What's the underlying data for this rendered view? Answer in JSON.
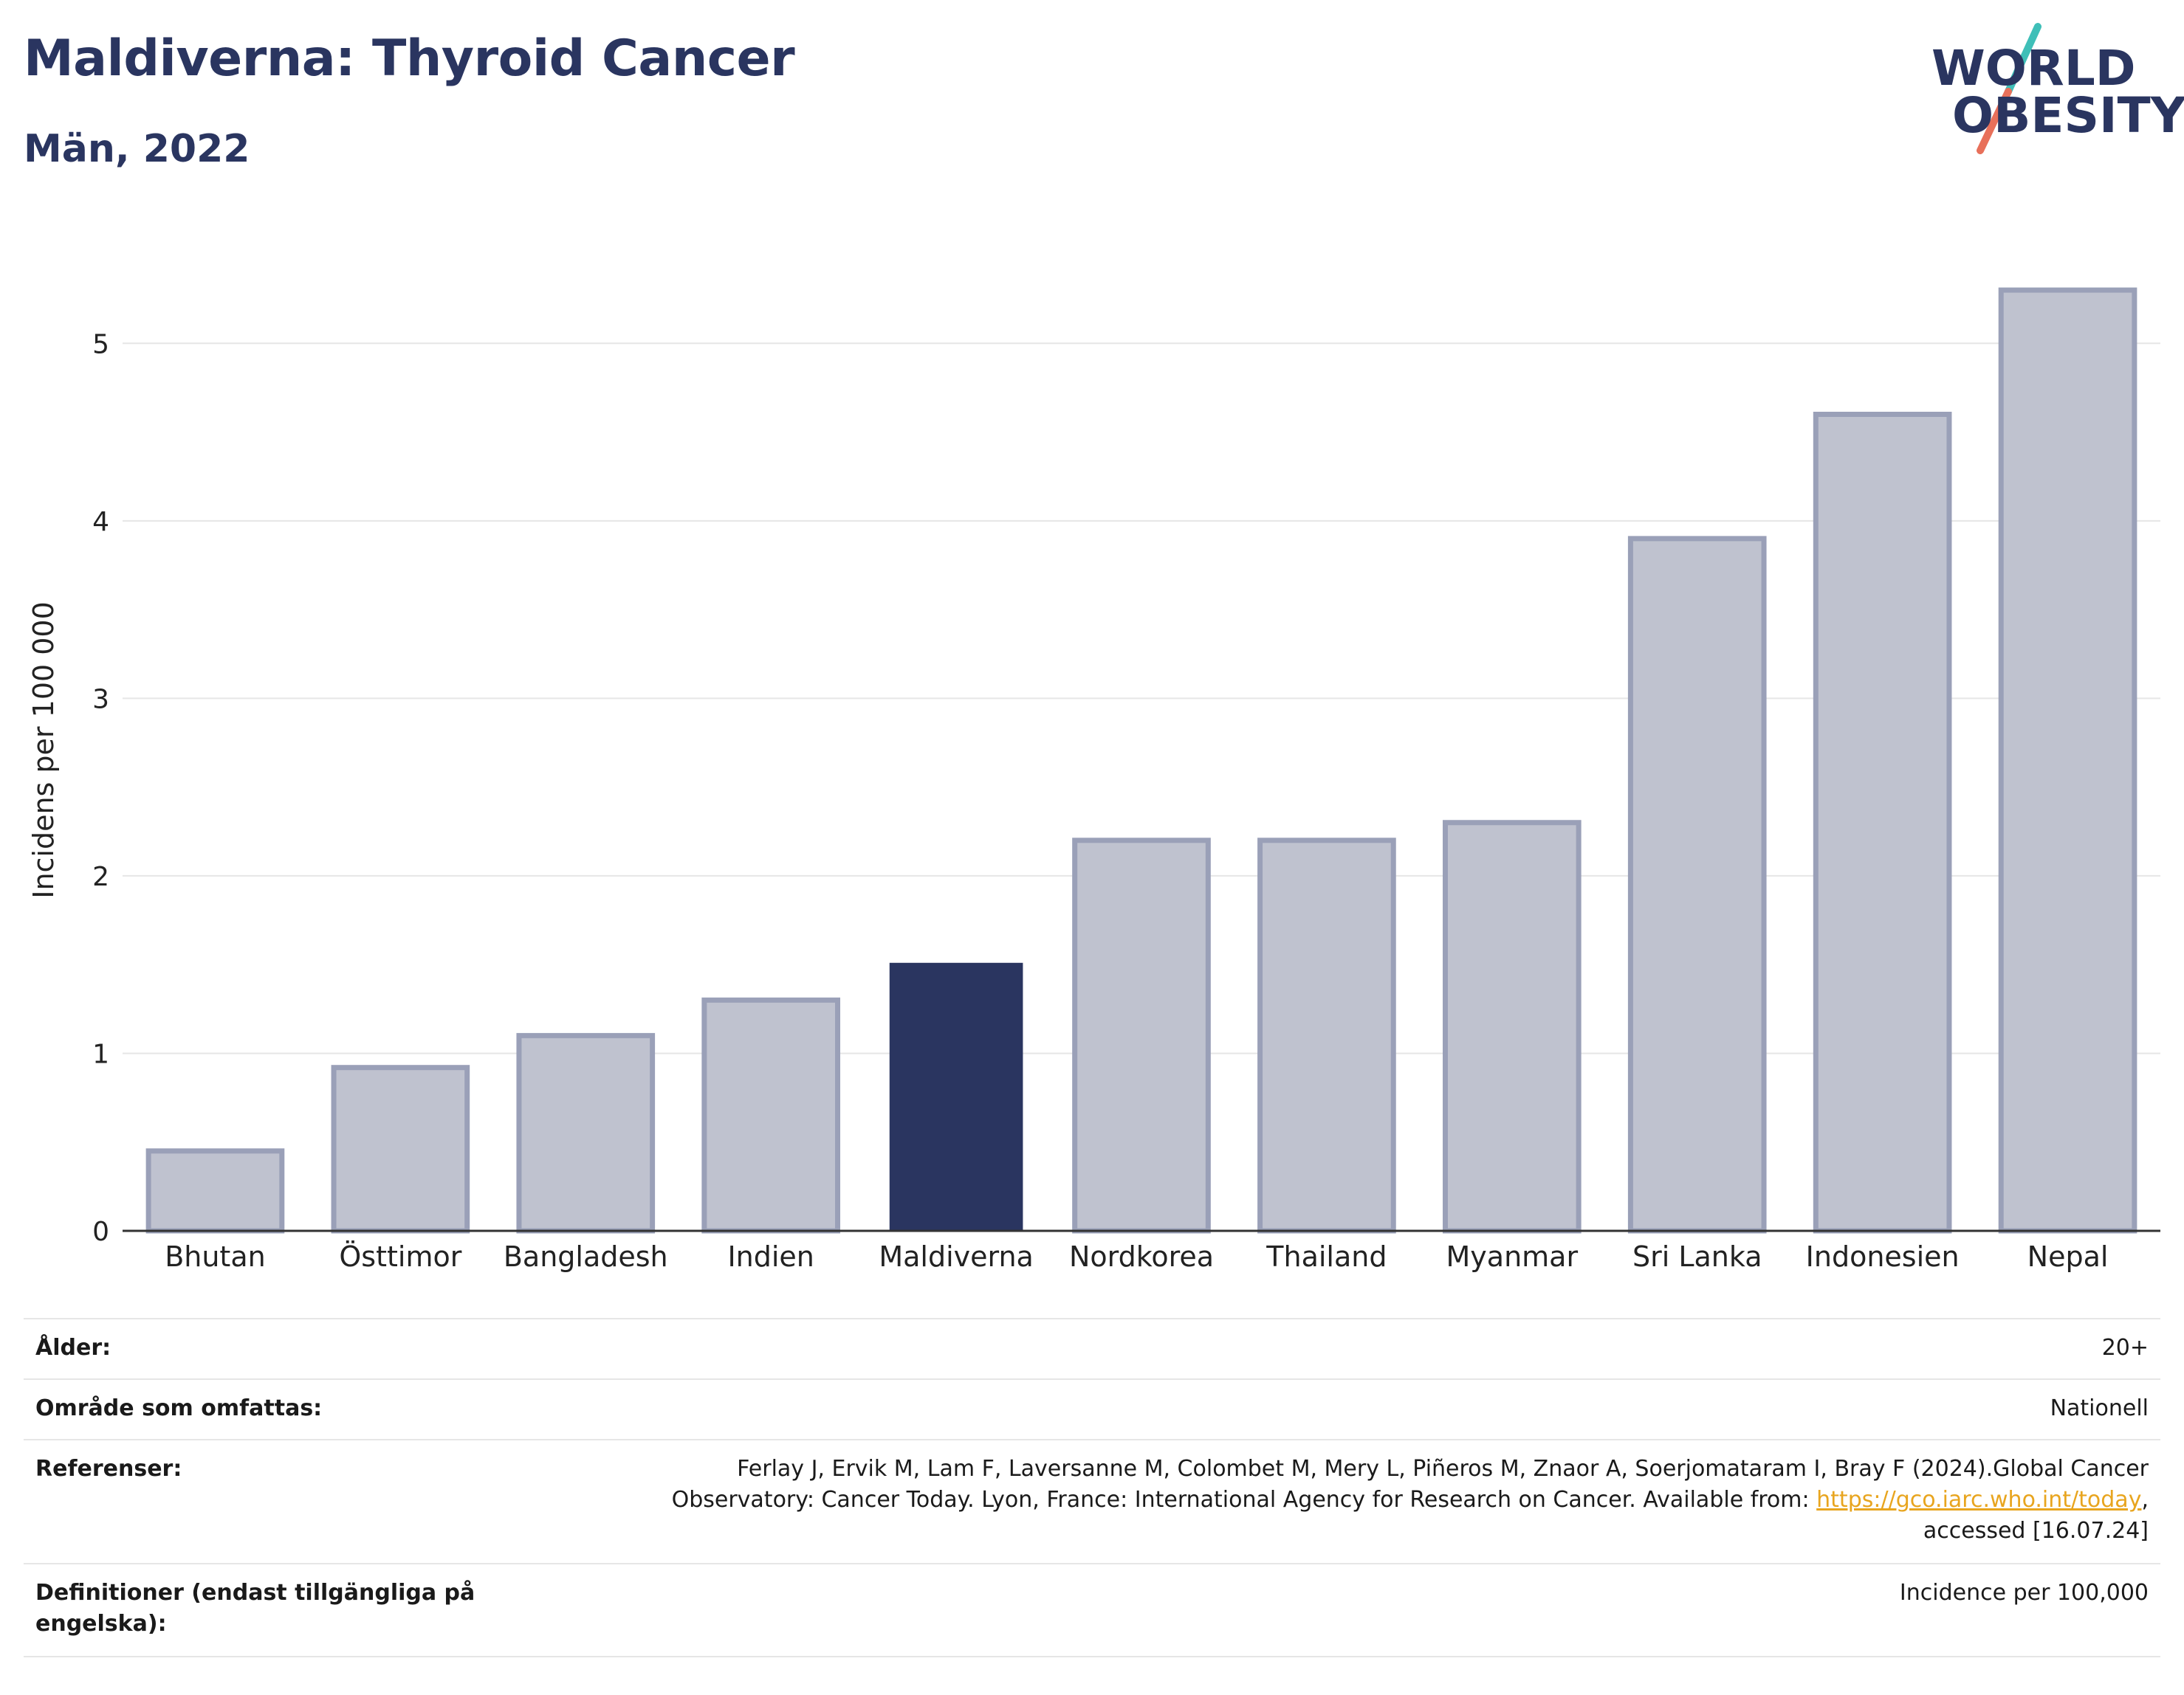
{
  "header": {
    "title": "Maldiverna: Thyroid Cancer",
    "subtitle": "Män, 2022"
  },
  "logo": {
    "line1": "WORLD",
    "line2": "OBESITY",
    "slash_colors": [
      "#3fbfb8",
      "#e8705a"
    ]
  },
  "colors": {
    "highlight": "#2a3560",
    "bar_fill": "#bfc2cf",
    "bar_stroke": "#9aa0b8",
    "axis": "#333333",
    "grid": "#e6e6e6"
  },
  "chart_data": {
    "type": "bar",
    "categories": [
      "Bhutan",
      "Östtimor",
      "Bangladesh",
      "Indien",
      "Maldiverna",
      "Nordkorea",
      "Thailand",
      "Myanmar",
      "Sri Lanka",
      "Indonesien",
      "Nepal"
    ],
    "values": [
      0.45,
      0.92,
      1.1,
      1.3,
      1.51,
      2.2,
      2.2,
      2.3,
      3.9,
      4.6,
      5.3
    ],
    "highlight": "Maldiverna",
    "ylabel": "Incidens per 100 000",
    "xlabel": "",
    "ylim": [
      0,
      5.5
    ],
    "yticks": [
      0,
      1,
      2,
      3,
      4,
      5
    ],
    "grid": true
  },
  "meta": {
    "age": {
      "label": "Ålder:",
      "value": "20+"
    },
    "area": {
      "label": "Område som omfattas:",
      "value": "Nationell"
    },
    "refs": {
      "label": "Referenser:",
      "line1": "Ferlay J, Ervik M, Lam F, Laversanne M, Colombet M, Mery L, Piñeros M, Znaor A, Soerjomataram I, Bray F (2024).Global Cancer",
      "line2_pre": "Observatory: Cancer Today. Lyon, France: International Agency for Research on Cancer. Available from: ",
      "link": "https://gco.iarc.who.int/today",
      "line2_post": ",",
      "line3": "accessed [16.07.24]"
    },
    "defs": {
      "label": "Definitioner (endast tillgängliga på engelska):",
      "value": "Incidence per 100,000"
    }
  }
}
